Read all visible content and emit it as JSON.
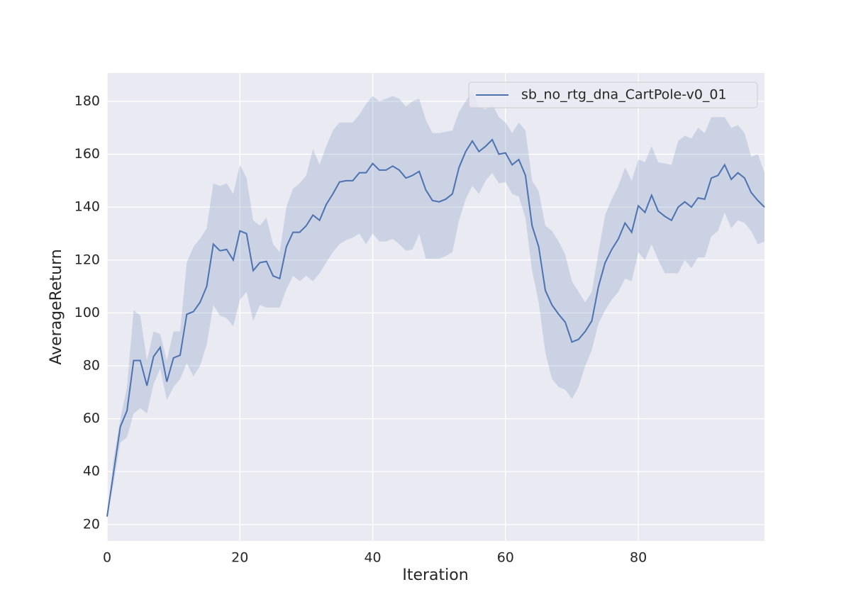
{
  "chart_data": {
    "type": "line",
    "xlabel": "Iteration",
    "ylabel": "AverageReturn",
    "x": [
      0,
      1,
      2,
      3,
      4,
      5,
      6,
      7,
      8,
      9,
      10,
      11,
      12,
      13,
      14,
      15,
      16,
      17,
      18,
      19,
      20,
      21,
      22,
      23,
      24,
      25,
      26,
      27,
      28,
      29,
      30,
      31,
      32,
      33,
      34,
      35,
      36,
      37,
      38,
      39,
      40,
      41,
      42,
      43,
      44,
      45,
      46,
      47,
      48,
      49,
      50,
      51,
      52,
      53,
      54,
      55,
      56,
      57,
      58,
      59,
      60,
      61,
      62,
      63,
      64,
      65,
      66,
      67,
      68,
      69,
      70,
      71,
      72,
      73,
      74,
      75,
      76,
      77,
      78,
      79,
      80,
      81,
      82,
      83,
      84,
      85,
      86,
      87,
      88,
      89,
      90,
      91,
      92,
      93,
      94,
      95,
      96,
      97,
      98,
      99
    ],
    "series": [
      {
        "name": "sb_no_rtg_dna_CartPole-v0_01",
        "color": "#4c72b0",
        "values": [
          23,
          40,
          57,
          63,
          82,
          82,
          72.5,
          83.5,
          87,
          74,
          83,
          84,
          99.5,
          100.5,
          104,
          110,
          126,
          123.5,
          124,
          120,
          131,
          130,
          116,
          119,
          119.5,
          114,
          113,
          125,
          130.5,
          130.5,
          133,
          137,
          135,
          141,
          145,
          149.5,
          150,
          150,
          153,
          153,
          156.5,
          154,
          154,
          155.5,
          154,
          151,
          152,
          153.5,
          146.5,
          142.5,
          142,
          143,
          145,
          155,
          161,
          165,
          161,
          163,
          165.5,
          160,
          160.5,
          156,
          158,
          152,
          133,
          125,
          108.5,
          103,
          99.5,
          96.5,
          89,
          90,
          93,
          97,
          110,
          119,
          124,
          128,
          134,
          130.5,
          140.5,
          138,
          144.5,
          138.5,
          136.5,
          135,
          140,
          142,
          140,
          143.5,
          143,
          151,
          152,
          156,
          150.5,
          153,
          151,
          145.5,
          142.5,
          140
        ],
        "upper": [
          23,
          45,
          60,
          72,
          101,
          99,
          82,
          93,
          92,
          82,
          93,
          93,
          119,
          125,
          128,
          132,
          149,
          148,
          149,
          145,
          156,
          151,
          135,
          133,
          136,
          126,
          123,
          140,
          147,
          149,
          152,
          162,
          156,
          163,
          169,
          172,
          172,
          172,
          175,
          179,
          182,
          180,
          181,
          182,
          181,
          178,
          180,
          181,
          173,
          168,
          168,
          168.5,
          169,
          176,
          180,
          184,
          178,
          177,
          179,
          174,
          172,
          168,
          172,
          169,
          150,
          146,
          133,
          131,
          127,
          122,
          112,
          108,
          104,
          108,
          123,
          137,
          143,
          148,
          155,
          150,
          158,
          157,
          163,
          157,
          156.5,
          156,
          165,
          167,
          166,
          170,
          168,
          174,
          174,
          174,
          170,
          171,
          168,
          159,
          160,
          153
        ],
        "lower": [
          23,
          36,
          51,
          53,
          62,
          64,
          62,
          73,
          79,
          67,
          72,
          75,
          81,
          76,
          80,
          88,
          103,
          99,
          98,
          95,
          105,
          108,
          97,
          103,
          102,
          102,
          102,
          109,
          114,
          112,
          114,
          112,
          115,
          119,
          123,
          126,
          127.5,
          128.5,
          130,
          126,
          130,
          127,
          127,
          128,
          126,
          123.5,
          124,
          130,
          120.5,
          120.5,
          120.5,
          121.5,
          123,
          135,
          143,
          148,
          145,
          150,
          153,
          149,
          149.5,
          145,
          144,
          136,
          116,
          104,
          85,
          75,
          72,
          71,
          67.5,
          72,
          80,
          86,
          96,
          101,
          105,
          108,
          113,
          112,
          123,
          120,
          126,
          120,
          115,
          115,
          115,
          120,
          117,
          121,
          121,
          129,
          131,
          138,
          132,
          135,
          134,
          131,
          126,
          127
        ]
      }
    ],
    "xlim": [
      0,
      99
    ],
    "ylim": [
      13.8,
      190.7
    ],
    "xticks": [
      0,
      20,
      40,
      60,
      80
    ],
    "yticks": [
      20,
      40,
      60,
      80,
      100,
      120,
      140,
      160,
      180
    ],
    "grid": true,
    "legend": "upper right"
  }
}
